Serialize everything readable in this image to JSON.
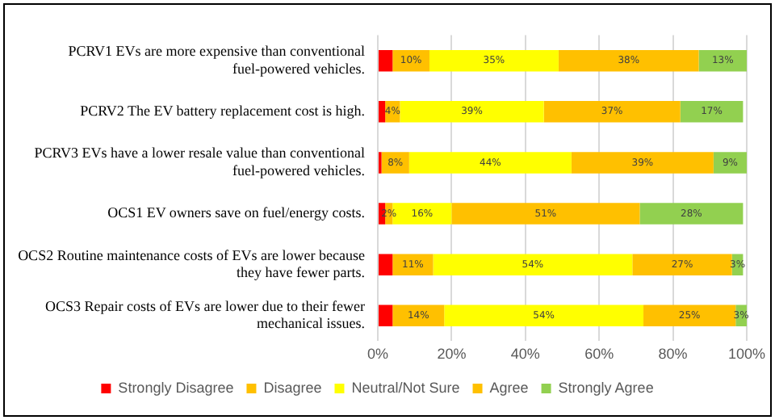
{
  "chart_data": {
    "type": "bar",
    "orientation": "horizontal",
    "stacked": true,
    "categories": [
      "PCRV1 EVs are more expensive than conventional fuel-powered vehicles.",
      "PCRV2 The EV battery replacement cost is high.",
      "PCRV3 EVs have a lower resale value than conventional fuel-powered vehicles.",
      "OCS1 EV owners save on fuel/energy costs.",
      "OCS2 Routine maintenance costs of EVs are lower because they have fewer parts.",
      "OCS3 Repair costs of EVs are lower due to their fewer mechanical issues."
    ],
    "series": [
      {
        "name": "Strongly Disagree",
        "color": "#ff0000",
        "values": [
          4,
          2,
          1,
          2,
          4,
          4
        ],
        "value_labels": [
          null,
          null,
          null,
          null,
          null,
          null
        ]
      },
      {
        "name": "Disagree",
        "color": "#ffc000",
        "values": [
          10,
          4,
          7.5,
          2,
          11,
          14
        ],
        "value_labels": [
          "10%",
          "4%",
          "8%",
          "2%",
          "11%",
          "14%"
        ]
      },
      {
        "name": "Neutral/Not Sure",
        "color": "#ffff00",
        "values": [
          35,
          39,
          44,
          16,
          54,
          54
        ],
        "value_labels": [
          "35%",
          "39%",
          "44%",
          "16%",
          "54%",
          "54%"
        ]
      },
      {
        "name": "Agree",
        "color": "#ffc000",
        "values": [
          38,
          37,
          38.5,
          51,
          27,
          25
        ],
        "value_labels": [
          "38%",
          "37%",
          "39%",
          "51%",
          "27%",
          "25%"
        ]
      },
      {
        "name": "Strongly Agree",
        "color": "#92d050",
        "values": [
          13,
          17,
          9,
          28,
          3,
          3
        ],
        "value_labels": [
          "13%",
          "17%",
          "9%",
          "28%",
          "3%",
          "3%"
        ]
      }
    ],
    "xlim": [
      0,
      100
    ],
    "xticks": [
      {
        "value": 0,
        "label": "0%"
      },
      {
        "value": 20,
        "label": "20%"
      },
      {
        "value": 40,
        "label": "40%"
      },
      {
        "value": 60,
        "label": "60%"
      },
      {
        "value": 80,
        "label": "80%"
      },
      {
        "value": 100,
        "label": "100%"
      }
    ],
    "grid": "x",
    "legend": "bottom"
  }
}
